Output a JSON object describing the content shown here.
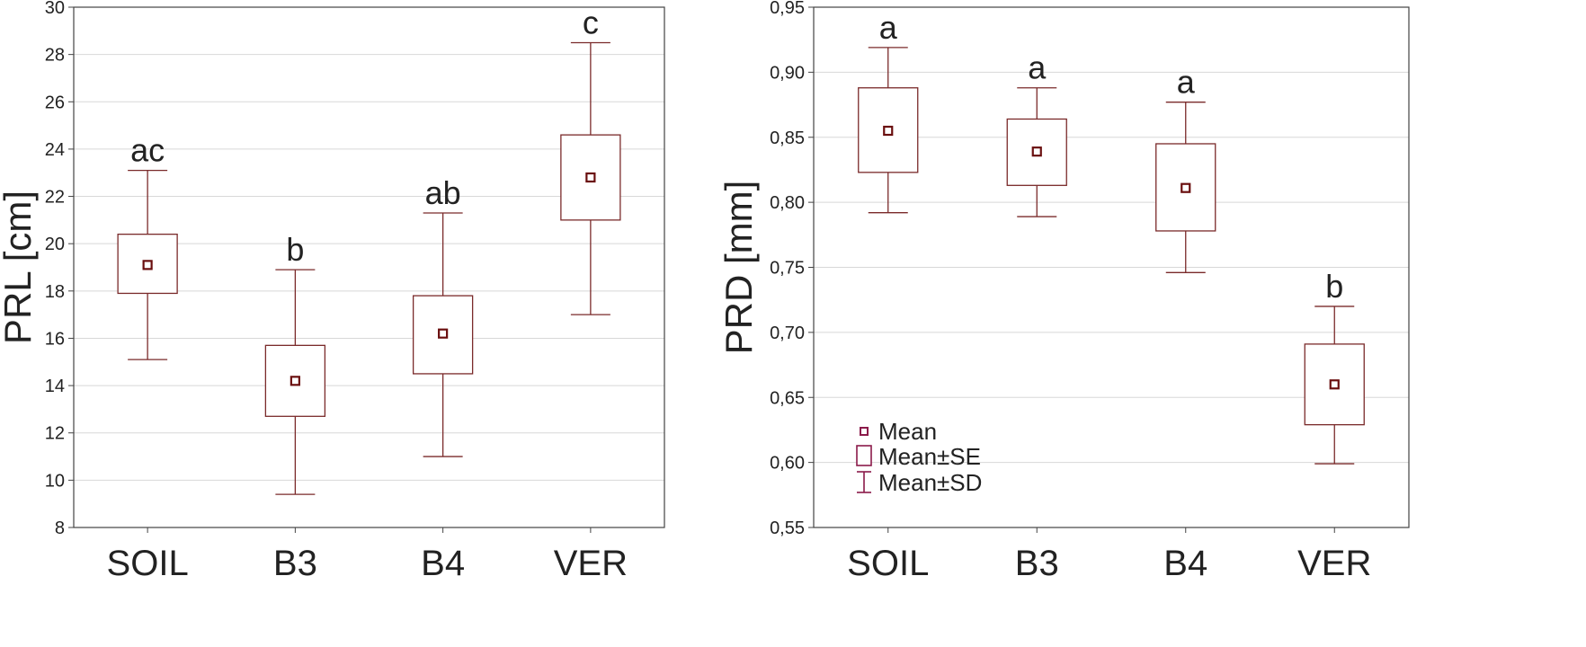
{
  "chart_data": [
    {
      "type": "box",
      "categories": [
        "SOIL",
        "B3",
        "B4",
        "VER"
      ],
      "ylabel": "PRL [cm]",
      "ylim": [
        8,
        30
      ],
      "yticks": [
        "8",
        "10",
        "12",
        "14",
        "16",
        "18",
        "20",
        "22",
        "24",
        "26",
        "28",
        "30"
      ],
      "grid": "horizontal",
      "series": [
        {
          "mean": [
            19.1,
            14.2,
            16.2,
            22.8
          ],
          "se_low": [
            17.9,
            12.7,
            14.5,
            21.0
          ],
          "se_high": [
            20.4,
            15.7,
            17.8,
            24.6
          ],
          "sd_low": [
            15.1,
            9.4,
            11.0,
            17.0
          ],
          "sd_high": [
            23.1,
            18.9,
            21.3,
            28.5
          ]
        }
      ],
      "group_labels": [
        "ac",
        "b",
        "ab",
        "c"
      ]
    },
    {
      "type": "box",
      "categories": [
        "SOIL",
        "B3",
        "B4",
        "VER"
      ],
      "ylabel": "PRD [mm]",
      "ylim": [
        0.55,
        0.95
      ],
      "yticks": [
        "0,55",
        "0,60",
        "0,65",
        "0,70",
        "0,75",
        "0,80",
        "0,85",
        "0,90",
        "0,95"
      ],
      "grid": "horizontal",
      "series": [
        {
          "mean": [
            0.855,
            0.839,
            0.811,
            0.66
          ],
          "se_low": [
            0.823,
            0.813,
            0.778,
            0.629
          ],
          "se_high": [
            0.888,
            0.864,
            0.845,
            0.691
          ],
          "sd_low": [
            0.792,
            0.789,
            0.746,
            0.599
          ],
          "sd_high": [
            0.919,
            0.888,
            0.877,
            0.72
          ]
        }
      ],
      "group_labels": [
        "a",
        "a",
        "a",
        "b"
      ],
      "legend": {
        "position": "bottom-left",
        "items": [
          "Mean",
          "Mean±SE",
          "Mean±SD"
        ]
      }
    }
  ],
  "colors": {
    "box": "#7a2a2a",
    "grid": "#d8d8d8",
    "frame": "#444444",
    "legend": "#8b1a4a"
  }
}
